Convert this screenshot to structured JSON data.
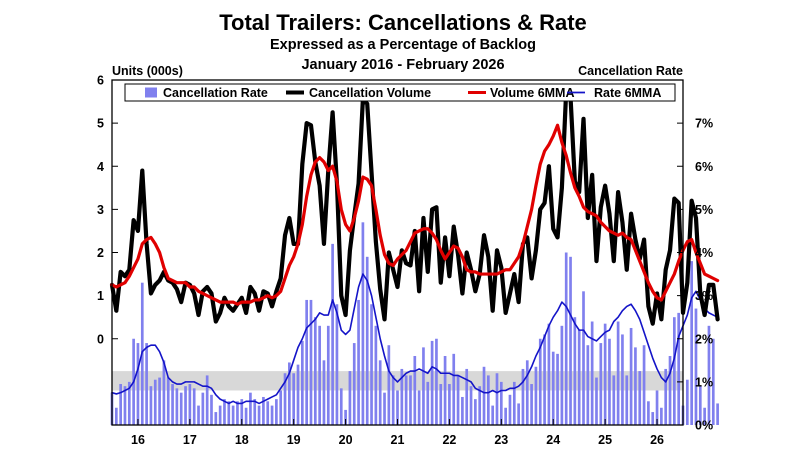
{
  "chart_data": {
    "type": "bar+line",
    "title": "Total Trailers: Cancellations & Rate",
    "subtitle": "Expressed as a Percentage of Backlog",
    "date_range": "January 2016 - February 2026",
    "left_axis_label": "Units (000s)",
    "right_axis_label": "Cancellation Rate",
    "left_ylim": [
      -2,
      6
    ],
    "right_ylim": [
      0,
      8
    ],
    "left_ticks": [
      "0",
      "1",
      "2",
      "3",
      "4",
      "5",
      "6"
    ],
    "left_tick_values": [
      0,
      1,
      2,
      3,
      4,
      5,
      6
    ],
    "right_ticks": [
      "0%",
      "1%",
      "2%",
      "3%",
      "4%",
      "5%",
      "6%",
      "7%"
    ],
    "right_tick_values": [
      0,
      1,
      2,
      3,
      4,
      5,
      6,
      7
    ],
    "x_ticks": [
      "16",
      "17",
      "18",
      "19",
      "20",
      "21",
      "22",
      "23",
      "24",
      "25",
      "26"
    ],
    "x_tick_values": [
      2016,
      2017,
      2018,
      2019,
      2020,
      2021,
      2022,
      2023,
      2024,
      2025,
      2026
    ],
    "x_range": [
      2015.5,
      2026.5
    ],
    "shaded_band_rate": [
      0.8,
      1.25
    ],
    "colors": {
      "rate_bars": "#8080ee",
      "volume": "#000000",
      "volume_ma": "#e00000",
      "rate_ma": "#1414c8",
      "band": "#d8d8d8"
    },
    "legend": [
      "Cancellation Rate",
      "Cancellation Volume",
      "Volume 6MMA",
      "Rate 6MMA"
    ],
    "series": [
      {
        "name": "Cancellation Volume",
        "axis": "left",
        "start": 2015.5,
        "step": 0.0833333,
        "values": [
          1.25,
          0.65,
          1.55,
          1.45,
          1.6,
          2.75,
          2.5,
          3.9,
          2.2,
          1.05,
          1.25,
          1.35,
          1.55,
          1.35,
          1.3,
          1.15,
          0.85,
          1.3,
          1.25,
          1.05,
          0.55,
          1.1,
          1.2,
          1.05,
          0.4,
          0.6,
          0.95,
          0.75,
          0.65,
          0.8,
          0.95,
          0.6,
          1.2,
          1.05,
          0.65,
          1.1,
          1.05,
          0.75,
          1.1,
          1.4,
          2.4,
          2.8,
          2.2,
          2.2,
          4.05,
          5.0,
          4.95,
          4.1,
          3.55,
          2.2,
          3.9,
          5.25,
          3.6,
          1.0,
          0.55,
          2.05,
          2.85,
          3.6,
          5.55,
          5.45,
          3.85,
          2.25,
          1.15,
          0.45,
          2.0,
          1.6,
          1.2,
          2.05,
          1.75,
          1.7,
          2.5,
          1.1,
          2.8,
          1.55,
          3.0,
          3.05,
          1.3,
          2.35,
          1.45,
          2.6,
          1.95,
          1.05,
          2.0,
          1.6,
          1.1,
          1.5,
          2.4,
          1.9,
          0.65,
          2.05,
          1.65,
          0.6,
          1.05,
          1.5,
          0.85,
          2.2,
          2.35,
          1.4,
          2.05,
          3.0,
          3.15,
          4.0,
          2.55,
          2.35,
          3.5,
          5.75,
          5.6,
          3.65,
          3.4,
          5.1,
          2.8,
          3.8,
          1.8,
          3.05,
          3.55,
          2.9,
          1.8,
          3.4,
          2.7,
          1.6,
          2.9,
          2.3,
          1.85,
          2.3,
          0.75,
          0.35,
          1.05,
          0.45,
          1.6,
          2.05,
          3.25,
          3.15,
          0.6,
          1.3,
          3.2,
          2.8,
          1.05,
          0.55,
          1.25,
          1.25,
          0.45
        ]
      },
      {
        "name": "Volume 6MMA",
        "axis": "left",
        "start": 2015.5,
        "step": 0.0833333,
        "values": [
          1.25,
          1.2,
          1.25,
          1.3,
          1.45,
          1.65,
          1.85,
          2.2,
          2.3,
          2.35,
          2.2,
          2.0,
          1.65,
          1.4,
          1.35,
          1.3,
          1.3,
          1.3,
          1.2,
          1.2,
          1.1,
          1.05,
          1.0,
          0.95,
          0.9,
          0.85,
          0.85,
          0.85,
          0.85,
          0.8,
          0.85,
          0.85,
          0.85,
          0.9,
          0.9,
          0.95,
          1.0,
          0.95,
          1.0,
          1.1,
          1.4,
          1.7,
          1.9,
          2.2,
          2.65,
          3.3,
          3.8,
          4.1,
          4.2,
          4.1,
          3.9,
          4.0,
          3.65,
          3.0,
          2.65,
          2.5,
          2.8,
          3.2,
          3.75,
          3.7,
          3.55,
          3.0,
          2.4,
          1.95,
          1.75,
          1.7,
          1.85,
          1.95,
          2.05,
          2.25,
          2.45,
          2.5,
          2.55,
          2.55,
          2.45,
          2.3,
          2.05,
          1.85,
          2.0,
          2.15,
          2.1,
          1.9,
          1.6,
          1.55,
          1.55,
          1.5,
          1.5,
          1.5,
          1.5,
          1.5,
          1.55,
          1.6,
          1.6,
          1.75,
          1.9,
          2.2,
          2.6,
          3.0,
          3.55,
          4.05,
          4.35,
          4.5,
          4.7,
          4.95,
          4.55,
          4.25,
          3.85,
          3.5,
          3.3,
          3.05,
          2.95,
          2.9,
          2.85,
          2.7,
          2.6,
          2.5,
          2.45,
          2.4,
          2.45,
          2.35,
          2.3,
          2.05,
          1.8,
          1.55,
          1.3,
          1.1,
          0.95,
          0.9,
          1.1,
          1.3,
          1.5,
          1.8,
          2.05,
          2.25,
          2.3,
          2.0,
          1.75,
          1.5,
          1.45,
          1.4,
          1.35
        ]
      },
      {
        "name": "Cancellation Rate",
        "axis": "right",
        "type": "bar",
        "start": 2015.5,
        "step": 0.0833333,
        "values": [
          0.75,
          0.4,
          0.95,
          0.9,
          1.0,
          2.0,
          1.9,
          3.3,
          1.9,
          0.9,
          1.05,
          1.1,
          1.5,
          1.1,
          0.95,
          0.85,
          0.75,
          0.9,
          0.95,
          0.85,
          0.45,
          0.75,
          1.15,
          0.7,
          0.3,
          0.45,
          0.6,
          0.55,
          0.45,
          0.55,
          0.6,
          0.4,
          0.75,
          0.6,
          0.45,
          0.65,
          0.55,
          0.45,
          0.6,
          0.8,
          1.2,
          1.45,
          1.2,
          1.4,
          1.95,
          2.9,
          2.9,
          2.5,
          2.3,
          1.5,
          2.3,
          4.2,
          2.8,
          0.85,
          0.35,
          1.25,
          1.9,
          2.9,
          4.7,
          3.9,
          2.8,
          2.3,
          1.5,
          0.75,
          1.85,
          1.15,
          0.8,
          1.3,
          1.15,
          1.15,
          1.6,
          0.8,
          1.8,
          1.0,
          1.95,
          2.0,
          0.95,
          1.6,
          0.95,
          1.65,
          1.15,
          0.65,
          1.3,
          0.9,
          0.6,
          0.9,
          1.35,
          1.15,
          0.45,
          1.2,
          1.0,
          0.4,
          0.7,
          1.0,
          0.5,
          1.3,
          1.5,
          0.95,
          1.35,
          2.0,
          2.1,
          2.35,
          1.7,
          1.65,
          2.3,
          4.0,
          3.9,
          2.5,
          2.2,
          3.1,
          1.85,
          2.4,
          1.1,
          1.9,
          2.35,
          2.0,
          1.15,
          2.4,
          2.1,
          1.15,
          2.25,
          1.8,
          1.25,
          1.85,
          0.55,
          0.3,
          0.8,
          0.4,
          1.3,
          1.6,
          2.5,
          2.6,
          0.45,
          1.05,
          3.8,
          2.7,
          0.9,
          0.4,
          2.3,
          2.0,
          0.5
        ]
      },
      {
        "name": "Rate 6MMA",
        "axis": "right",
        "start": 2015.5,
        "step": 0.0833333,
        "values": [
          0.75,
          0.72,
          0.75,
          0.8,
          0.85,
          1.0,
          1.3,
          1.7,
          1.8,
          1.85,
          1.85,
          1.7,
          1.45,
          1.1,
          1.0,
          0.95,
          0.95,
          1.0,
          1.0,
          1.0,
          0.95,
          0.9,
          0.9,
          0.85,
          0.7,
          0.6,
          0.55,
          0.5,
          0.55,
          0.5,
          0.5,
          0.55,
          0.55,
          0.55,
          0.5,
          0.55,
          0.6,
          0.65,
          0.7,
          0.85,
          1.0,
          1.2,
          1.5,
          1.8,
          2.0,
          2.25,
          2.35,
          2.45,
          2.6,
          2.55,
          2.55,
          2.9,
          2.6,
          2.2,
          2.1,
          2.2,
          2.7,
          3.2,
          3.5,
          3.35,
          3.0,
          2.5,
          2.0,
          1.6,
          1.25,
          1.1,
          1.0,
          1.1,
          1.2,
          1.25,
          1.25,
          1.3,
          1.25,
          1.2,
          1.35,
          1.3,
          1.2,
          1.2,
          1.2,
          1.15,
          1.15,
          1.1,
          1.05,
          1.0,
          0.85,
          0.8,
          0.75,
          0.75,
          0.8,
          0.75,
          0.8,
          0.8,
          0.85,
          0.85,
          0.9,
          1.0,
          1.15,
          1.35,
          1.6,
          1.8,
          2.05,
          2.3,
          2.5,
          2.65,
          2.85,
          2.75,
          2.55,
          2.35,
          2.2,
          2.2,
          2.05,
          2.0,
          1.95,
          2.05,
          2.15,
          2.2,
          2.4,
          2.5,
          2.65,
          2.75,
          2.8,
          2.65,
          2.45,
          2.15,
          1.85,
          1.55,
          1.3,
          1.1,
          1.0,
          1.2,
          1.55,
          2.05,
          2.3,
          2.55,
          2.95,
          3.1,
          2.9,
          2.7,
          2.6,
          2.55,
          2.5
        ]
      }
    ]
  }
}
